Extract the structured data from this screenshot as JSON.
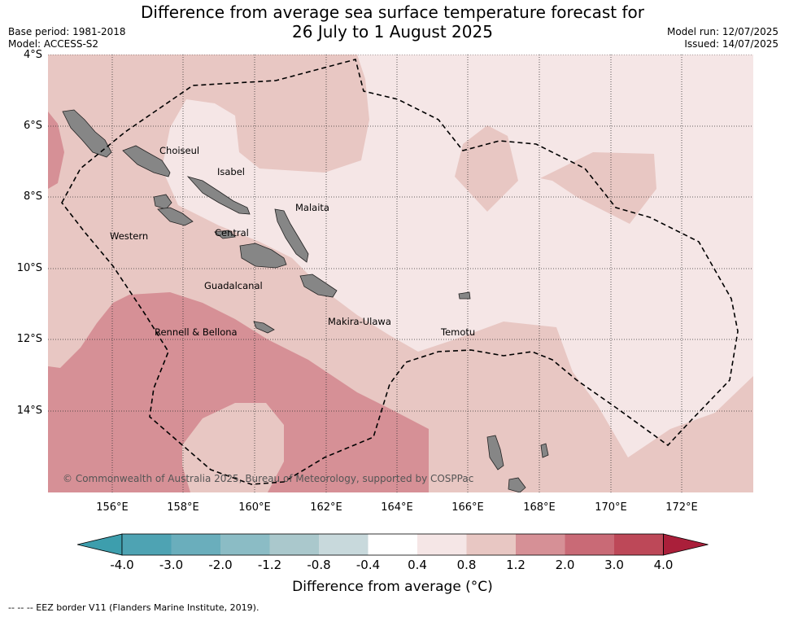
{
  "title_line1": "Difference from average sea surface temperature forecast for",
  "title_line2": "26 July to 1 August 2025",
  "meta": {
    "base_period": "Base period: 1981-2018",
    "model": "Model: ACCESS-S2",
    "model_run": "Model run: 12/07/2025",
    "issued": "Issued: 14/07/2025"
  },
  "lat_labels": [
    "4°S",
    "6°S",
    "8°S",
    "10°S",
    "12°S",
    "14°S"
  ],
  "lon_labels": [
    "156°E",
    "158°E",
    "160°E",
    "162°E",
    "164°E",
    "166°E",
    "168°E",
    "170°E",
    "172°E"
  ],
  "regions": {
    "choiseul": "Choiseul",
    "isabel": "Isabel",
    "malaita": "Malaita",
    "western": "Western",
    "central": "Central",
    "guadalcanal": "Guadalcanal",
    "makira": "Makira-Ulawa",
    "rennell": "Rennell & Bellona",
    "temotu": "Temotu"
  },
  "copyright": "© Commonwealth of Australia 2025, Bureau of Meteorology, supported by COSPPac",
  "colorbar": {
    "labels": [
      "-4.0",
      "-3.0",
      "-2.0",
      "-1.2",
      "-0.8",
      "-0.4",
      "0.4",
      "0.8",
      "1.2",
      "2.0",
      "3.0",
      "4.0"
    ],
    "colors": [
      "#3d9ead",
      "#4ea3b3",
      "#6aaebc",
      "#8bbcc5",
      "#aac8cc",
      "#c8d9dc",
      "#ffffff",
      "#f5e6e6",
      "#e8c7c3",
      "#d69096",
      "#c96a76",
      "#bd4858",
      "#aa1f3a"
    ],
    "title": "Difference from average (°C)"
  },
  "eez_note": "--  --  -- EEZ border V11 (Flanders Marine Institute, 2019)."
}
